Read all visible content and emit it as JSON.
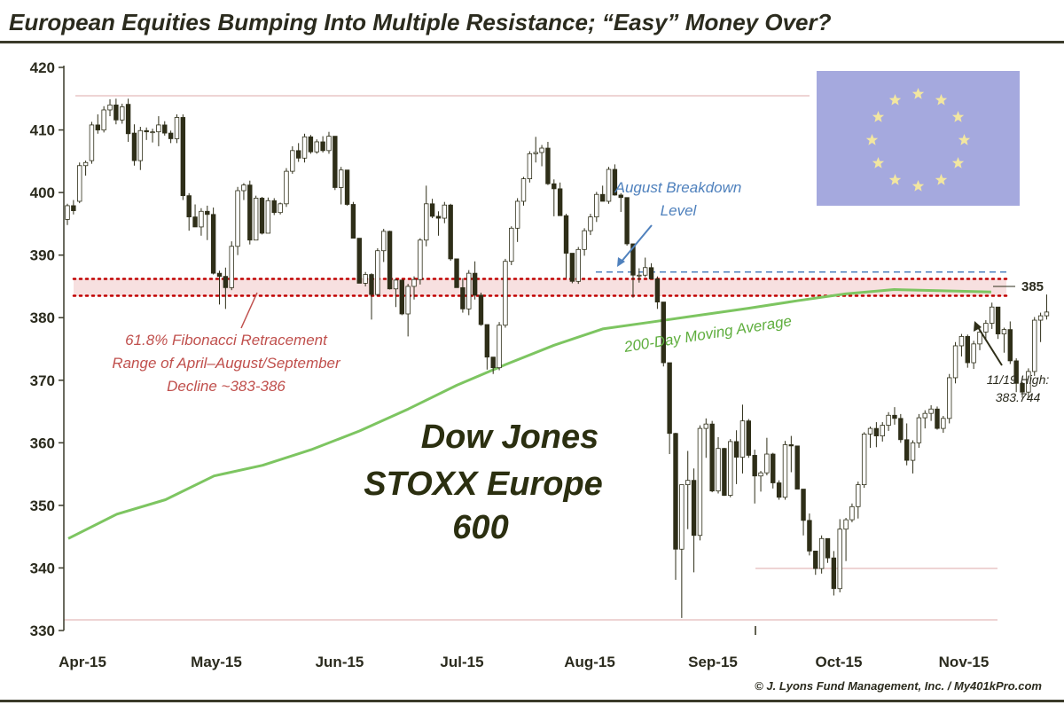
{
  "title": "European Equities Bumping Into Multiple Resistance; “Easy” Money Over?",
  "credit": "© J. Lyons Fund Management, Inc. / My401kPro.com",
  "chart_data": {
    "type": "candlestick",
    "index_name_lines": [
      "Dow Jones",
      "STOXX Europe",
      "600"
    ],
    "ylim": [
      330,
      420
    ],
    "y_ticks": [
      330,
      340,
      350,
      360,
      370,
      380,
      390,
      400,
      410,
      420
    ],
    "x_tick_labels": [
      "Apr-15",
      "May-15",
      "Jun-15",
      "Jul-15",
      "Aug-15",
      "Sep-15",
      "Oct-15",
      "Nov-15"
    ],
    "grid": false,
    "colors": {
      "up_candle_fill": "#ffffff",
      "down_candle_fill": "#2e2e18",
      "candle_outline": "#2e2e18",
      "fib_zone": "#c00000",
      "moving_average": "#7dc561",
      "breakdown_line": "#4f81bd",
      "flag_background": "#a5a9de",
      "flag_stars": "#f2e6a0"
    },
    "candles_ohlc": [
      [
        395.7,
        398.2,
        394.8,
        397.9
      ],
      [
        397.9,
        398.8,
        396.5,
        397.1
      ],
      [
        398.6,
        404.8,
        398.3,
        404.3
      ],
      [
        404.3,
        405.1,
        402.7,
        404.8
      ],
      [
        405.1,
        411.3,
        404.6,
        410.8
      ],
      [
        410.8,
        412.5,
        409.4,
        410.0
      ],
      [
        410.0,
        413.8,
        409.6,
        413.2
      ],
      [
        413.2,
        414.9,
        412.2,
        414.0
      ],
      [
        414.0,
        415.0,
        410.9,
        411.6
      ],
      [
        411.6,
        414.2,
        411.0,
        413.7
      ],
      [
        414.1,
        415.0,
        408.1,
        409.4
      ],
      [
        409.5,
        410.9,
        404.3,
        405.1
      ],
      [
        405.1,
        410.5,
        403.6,
        409.9
      ],
      [
        409.9,
        410.4,
        408.4,
        409.7
      ],
      [
        409.7,
        410.2,
        408.0,
        409.7
      ],
      [
        409.7,
        412.2,
        407.4,
        410.8
      ],
      [
        410.8,
        411.4,
        409.1,
        409.5
      ],
      [
        409.5,
        409.9,
        407.9,
        408.6
      ],
      [
        408.6,
        412.5,
        407.9,
        412.0
      ],
      [
        412.0,
        412.5,
        398.8,
        399.5
      ],
      [
        399.5,
        399.9,
        393.9,
        396.1
      ],
      [
        396.1,
        398.1,
        394.6,
        394.5
      ],
      [
        394.5,
        397.5,
        393.1,
        397.0
      ],
      [
        397.0,
        397.9,
        392.4,
        396.5
      ],
      [
        396.5,
        397.6,
        386.9,
        387.1
      ],
      [
        387.1,
        387.5,
        382.1,
        386.6
      ],
      [
        386.6,
        388.0,
        381.4,
        384.8
      ],
      [
        384.8,
        392.2,
        384.4,
        391.4
      ],
      [
        391.4,
        400.9,
        390.0,
        400.3
      ],
      [
        400.3,
        401.5,
        398.8,
        401.2
      ],
      [
        401.2,
        401.9,
        391.7,
        392.4
      ],
      [
        392.4,
        399.5,
        392.5,
        399.1
      ],
      [
        399.1,
        399.3,
        393.3,
        393.5
      ],
      [
        393.5,
        399.2,
        393.6,
        398.7
      ],
      [
        398.7,
        399.1,
        396.4,
        396.8
      ],
      [
        396.8,
        398.4,
        396.5,
        398.2
      ],
      [
        398.2,
        403.9,
        397.7,
        403.4
      ],
      [
        403.4,
        407.4,
        403.0,
        406.7
      ],
      [
        406.7,
        407.9,
        404.9,
        405.5
      ],
      [
        405.5,
        409.4,
        404.8,
        408.9
      ],
      [
        408.9,
        409.2,
        406.2,
        406.5
      ],
      [
        406.5,
        408.5,
        406.2,
        408.1
      ],
      [
        408.1,
        409.0,
        406.4,
        406.7
      ],
      [
        406.7,
        409.7,
        406.2,
        409.0
      ],
      [
        409.0,
        409.0,
        400.4,
        400.8
      ],
      [
        400.8,
        404.1,
        398.1,
        403.6
      ],
      [
        403.6,
        403.2,
        397.9,
        398.1
      ],
      [
        398.1,
        398.5,
        392.7,
        392.7
      ],
      [
        392.7,
        392.5,
        385.5,
        385.5
      ],
      [
        385.5,
        387.3,
        385.0,
        386.9
      ],
      [
        386.9,
        387.1,
        379.7,
        383.7
      ],
      [
        383.7,
        391.1,
        383.5,
        390.7
      ],
      [
        390.7,
        394.2,
        388.9,
        393.8
      ],
      [
        393.8,
        393.9,
        384.5,
        384.6
      ],
      [
        384.6,
        386.2,
        381.7,
        386.0
      ],
      [
        386.0,
        385.1,
        380.4,
        380.6
      ],
      [
        380.6,
        385.4,
        377.0,
        385.0
      ],
      [
        385.0,
        386.6,
        382.9,
        386.1
      ],
      [
        386.1,
        392.7,
        385.3,
        392.4
      ],
      [
        392.4,
        401.1,
        391.4,
        398.2
      ],
      [
        398.2,
        399.0,
        395.9,
        396.2
      ],
      [
        396.2,
        397.0,
        393.1,
        395.9
      ],
      [
        395.9,
        398.5,
        395.1,
        398.0
      ],
      [
        398.0,
        398.2,
        389.1,
        389.4
      ],
      [
        389.4,
        388.8,
        384.8,
        384.8
      ],
      [
        384.8,
        386.3,
        380.8,
        381.4
      ],
      [
        381.4,
        387.6,
        380.4,
        387.1
      ],
      [
        387.1,
        389.0,
        382.9,
        383.6
      ],
      [
        383.6,
        384.0,
        378.7,
        378.9
      ],
      [
        378.9,
        377.9,
        371.7,
        373.7
      ],
      [
        373.7,
        373.7,
        371.0,
        372.0
      ],
      [
        372.0,
        379.3,
        371.6,
        378.8
      ],
      [
        378.8,
        389.4,
        378.4,
        389.0
      ],
      [
        389.0,
        394.6,
        388.4,
        394.3
      ],
      [
        394.3,
        399.1,
        392.1,
        398.6
      ],
      [
        398.6,
        402.5,
        397.9,
        402.2
      ],
      [
        402.2,
        406.6,
        401.6,
        406.2
      ],
      [
        406.2,
        408.9,
        404.8,
        406.4
      ],
      [
        406.4,
        407.6,
        404.2,
        407.1
      ],
      [
        407.1,
        408.1,
        401.2,
        401.4
      ],
      [
        401.4,
        402.1,
        396.2,
        400.6
      ],
      [
        400.6,
        401.6,
        396.3,
        396.3
      ],
      [
        396.3,
        396.6,
        386.3,
        390.3
      ],
      [
        390.3,
        389.6,
        385.5,
        385.8
      ],
      [
        385.8,
        391.3,
        385.4,
        390.9
      ],
      [
        390.9,
        394.3,
        389.9,
        393.9
      ],
      [
        393.9,
        396.6,
        393.2,
        396.1
      ],
      [
        396.1,
        400.1,
        395.3,
        399.7
      ],
      [
        399.7,
        401.1,
        398.6,
        398.6
      ],
      [
        398.6,
        404.1,
        398.2,
        403.7
      ],
      [
        403.7,
        404.5,
        399.5,
        399.6
      ],
      [
        399.6,
        399.9,
        396.9,
        399.2
      ],
      [
        399.2,
        398.9,
        391.5,
        391.8
      ],
      [
        391.8,
        391.5,
        383.2,
        386.8
      ],
      [
        386.8,
        387.9,
        385.6,
        386.8
      ],
      [
        386.8,
        389.6,
        386.5,
        388.0
      ],
      [
        388.0,
        388.7,
        386.4,
        386.2
      ],
      [
        386.2,
        386.6,
        381.4,
        382.5
      ],
      [
        382.5,
        382.5,
        372.2,
        372.8
      ],
      [
        372.8,
        372.6,
        358.2,
        361.5
      ],
      [
        361.5,
        361.6,
        338.1,
        343.0
      ],
      [
        343.0,
        346.8,
        332.0,
        353.3
      ],
      [
        353.3,
        358.7,
        346.2,
        354.0
      ],
      [
        354.0,
        355.9,
        339.3,
        345.2
      ],
      [
        345.2,
        362.8,
        344.4,
        362.3
      ],
      [
        362.3,
        363.9,
        357.6,
        363.0
      ],
      [
        363.0,
        363.5,
        352.1,
        352.3
      ],
      [
        352.3,
        360.9,
        351.9,
        359.1
      ],
      [
        359.1,
        359.2,
        351.5,
        351.6
      ],
      [
        351.6,
        360.6,
        351.3,
        360.2
      ],
      [
        360.2,
        362.0,
        353.4,
        357.7
      ],
      [
        357.7,
        366.1,
        355.1,
        363.5
      ],
      [
        363.5,
        363.8,
        357.6,
        358.0
      ],
      [
        358.0,
        358.9,
        350.3,
        354.7
      ],
      [
        354.7,
        355.5,
        352.2,
        355.2
      ],
      [
        355.2,
        360.8,
        354.8,
        358.2
      ],
      [
        358.2,
        358.4,
        352.7,
        353.6
      ],
      [
        353.6,
        354.0,
        350.9,
        351.3
      ],
      [
        351.3,
        360.3,
        350.9,
        359.7
      ],
      [
        359.7,
        361.1,
        355.3,
        359.5
      ],
      [
        359.5,
        358.7,
        352.6,
        352.6
      ],
      [
        352.6,
        348.3,
        345.2,
        347.6
      ],
      [
        347.6,
        348.7,
        342.0,
        342.7
      ],
      [
        342.7,
        342.7,
        338.9,
        339.9
      ],
      [
        339.9,
        345.2,
        339.1,
        344.7
      ],
      [
        344.7,
        344.1,
        340.8,
        341.6
      ],
      [
        341.6,
        342.7,
        335.6,
        336.7
      ],
      [
        336.7,
        347.8,
        336.1,
        346.2
      ],
      [
        346.2,
        348.0,
        341.1,
        347.7
      ],
      [
        347.7,
        350.3,
        347.3,
        349.8
      ],
      [
        349.8,
        353.8,
        347.9,
        353.3
      ],
      [
        353.3,
        361.7,
        352.8,
        361.4
      ],
      [
        361.4,
        362.6,
        359.2,
        362.3
      ],
      [
        362.3,
        363.3,
        359.3,
        361.1
      ],
      [
        361.1,
        363.3,
        360.2,
        362.8
      ],
      [
        362.8,
        364.9,
        361.9,
        364.4
      ],
      [
        364.4,
        365.7,
        362.9,
        363.9
      ],
      [
        363.9,
        364.6,
        360.0,
        360.5
      ],
      [
        360.5,
        363.1,
        356.4,
        357.2
      ],
      [
        357.2,
        360.4,
        355.1,
        360.0
      ],
      [
        360.0,
        364.6,
        359.2,
        364.0
      ],
      [
        364.0,
        365.2,
        362.3,
        364.7
      ],
      [
        364.7,
        366.0,
        363.5,
        365.4
      ],
      [
        365.4,
        365.8,
        362.1,
        362.3
      ],
      [
        362.3,
        364.3,
        361.6,
        363.9
      ],
      [
        363.9,
        371.0,
        363.1,
        370.4
      ],
      [
        370.4,
        376.1,
        369.5,
        375.5
      ],
      [
        375.5,
        377.4,
        373.8,
        377.0
      ],
      [
        377.0,
        377.3,
        372.0,
        372.8
      ],
      [
        372.8,
        376.3,
        371.8,
        375.8
      ],
      [
        375.8,
        378.3,
        374.8,
        377.7
      ],
      [
        377.7,
        379.6,
        376.3,
        379.1
      ],
      [
        379.1,
        382.4,
        378.2,
        381.7
      ],
      [
        381.7,
        381.6,
        376.6,
        377.4
      ],
      [
        377.4,
        378.4,
        374.4,
        378.1
      ],
      [
        378.1,
        379.4,
        372.6,
        373.1
      ],
      [
        373.1,
        373.5,
        368.1,
        369.5
      ],
      [
        369.5,
        369.7,
        367.2,
        368.1
      ],
      [
        368.1,
        371.9,
        367.1,
        371.4
      ],
      [
        371.4,
        380.1,
        370.7,
        379.6
      ],
      [
        379.6,
        380.8,
        376.1,
        380.3
      ],
      [
        380.3,
        383.7,
        379.7,
        380.9
      ]
    ],
    "series": [
      {
        "name": "200-Day Moving Average",
        "y": [
          344.7,
          348.6,
          350.9,
          354.7,
          356.4,
          358.9,
          361.9,
          365.4,
          369.2,
          372.5,
          375.6,
          378.2,
          379.3,
          380.4,
          381.5,
          382.7,
          383.8,
          384.5,
          384.3,
          384.1
        ]
      }
    ],
    "reference_levels": [
      {
        "kind": "band",
        "from": 383.5,
        "to": 386.2
      },
      {
        "kind": "line",
        "y": 387.3
      },
      {
        "kind": "line",
        "y": 385
      }
    ],
    "annotations": {
      "fibonacci_lines": [
        "61.8% Fibonacci Retracement",
        "Range of April–August/September",
        "Decline ~383-386"
      ],
      "breakdown_lines": [
        "August Breakdown",
        "Level"
      ],
      "ma_label": "200-Day Moving Average",
      "level_label": "385",
      "high_lines": [
        "11/19 High:",
        "383.744"
      ]
    }
  }
}
